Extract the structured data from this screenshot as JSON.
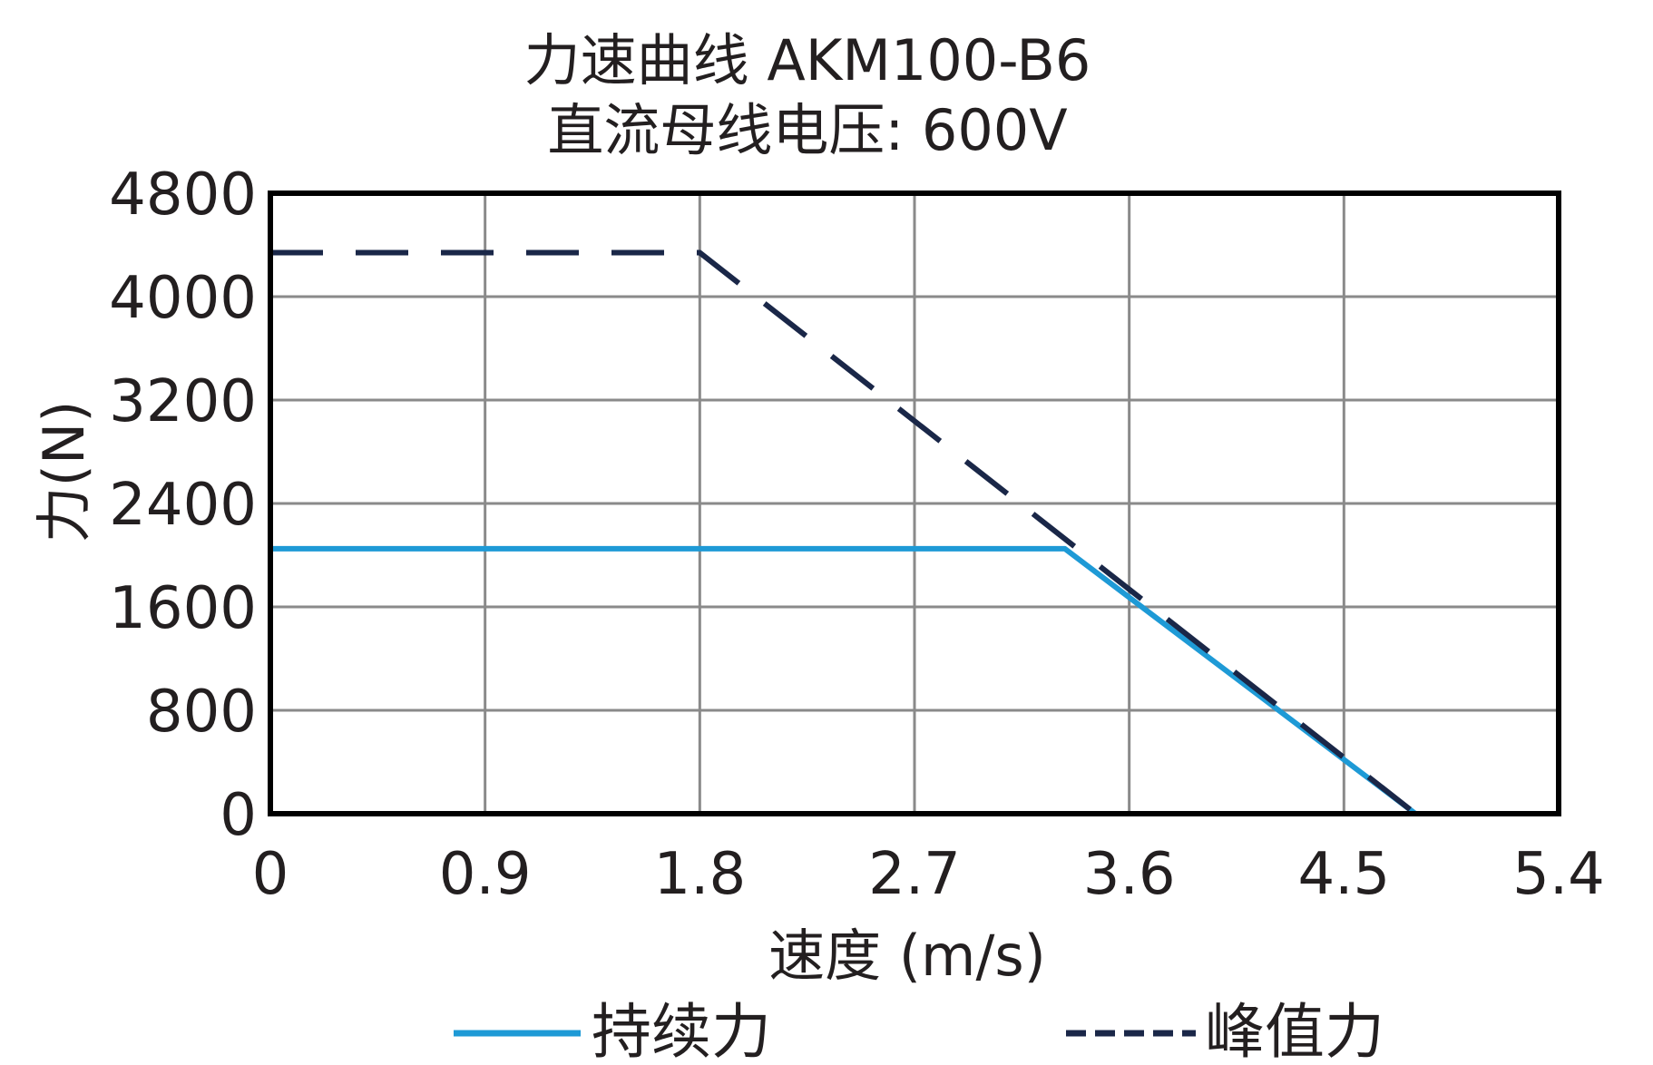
{
  "chart_data": {
    "type": "line",
    "title": "力速曲线 AKM100-B6",
    "subtitle": "直流母线电压: 600V",
    "xlabel": "速度 (m/s)",
    "ylabel": "力(N)",
    "xlim": [
      0,
      5.4
    ],
    "ylim": [
      0,
      4800
    ],
    "x_ticks": [
      "0",
      "0.9",
      "1.8",
      "2.7",
      "3.6",
      "4.5",
      "5.4"
    ],
    "y_ticks": [
      "0",
      "800",
      "1600",
      "2400",
      "3200",
      "4000",
      "4800"
    ],
    "grid": true,
    "legend_position": "bottom",
    "series": [
      {
        "name": "持续力",
        "style": "solid",
        "color": "#1e9ad6",
        "points": [
          [
            0,
            2050
          ],
          [
            3.33,
            2050
          ],
          [
            4.8,
            0
          ]
        ]
      },
      {
        "name": "峰值力",
        "style": "dashed",
        "color": "#1a2748",
        "points": [
          [
            0,
            4340
          ],
          [
            1.8,
            4340
          ],
          [
            4.8,
            0
          ]
        ]
      }
    ]
  }
}
